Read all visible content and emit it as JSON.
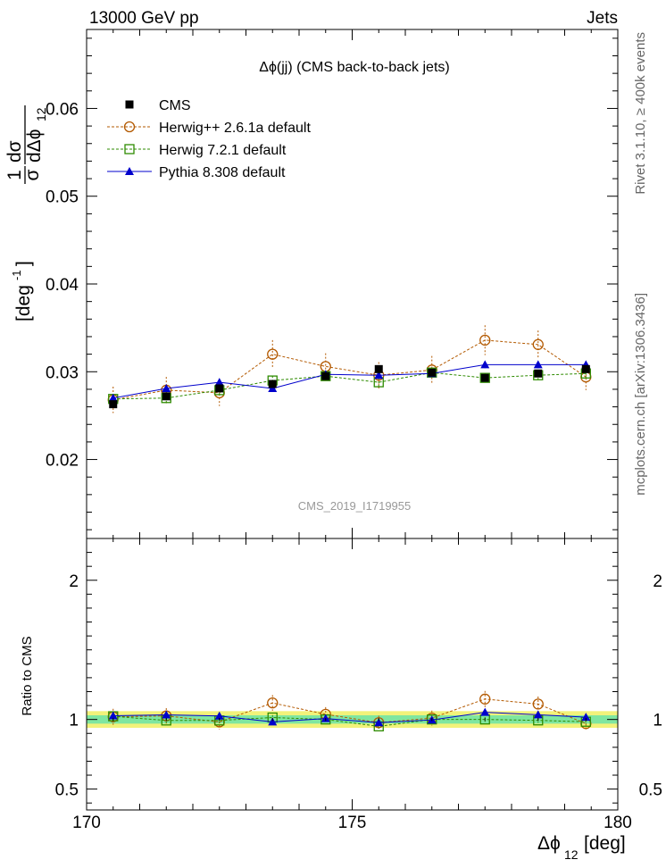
{
  "header": {
    "left": "13000 GeV pp",
    "right": "Jets",
    "side_top": "Rivet 3.1.10, ≥ 400k events",
    "side_bottom": "mcplots.cern.ch [arXiv:1306.3436]"
  },
  "chart_data": {
    "type": "line",
    "title": "Δϕ(jj) (CMS back-to-back jets)",
    "watermark": "CMS_2019_I1719955",
    "xlabel": "Δϕ",
    "xlabel_sub": "12",
    "xlabel_unit": "[deg]",
    "ylabel": "1/σ dσ/dΔϕ₁₂ [deg⁻¹]",
    "ylabel_num": "1",
    "ylabel_den": "σ",
    "ylabel_dsigma": "dσ",
    "ylabel_dphi": "dΔϕ",
    "ylabel_sub": "12",
    "ylabel_unit": "[deg",
    "ylabel_exp": "-1",
    "ylabel_close": "]",
    "ratio_ylabel": "Ratio to CMS",
    "xlim": [
      170,
      180
    ],
    "ylim": [
      0.011,
      0.069
    ],
    "ratio_ylim": [
      0.35,
      2.3
    ],
    "x_ticks": [
      170,
      175,
      180
    ],
    "x_tick_labels": [
      "170",
      "175",
      "180"
    ],
    "y_ticks": [
      0.02,
      0.03,
      0.04,
      0.05,
      0.06
    ],
    "y_tick_labels": [
      "0.02",
      "0.03",
      "0.04",
      "0.05",
      "0.06"
    ],
    "ratio_ticks": [
      0.5,
      1,
      2
    ],
    "ratio_tick_labels": [
      "0.5",
      "1",
      "2"
    ],
    "x": [
      170.5,
      171.5,
      172.5,
      173.5,
      174.5,
      175.5,
      176.5,
      177.5,
      178.5,
      179.4
    ],
    "series": [
      {
        "name": "CMS",
        "style": "data",
        "color": "#000000",
        "values": [
          0.0263,
          0.0272,
          0.0281,
          0.0286,
          0.0295,
          0.0303,
          0.0299,
          0.0293,
          0.0298,
          0.0303
        ],
        "errors": [
          0.0003,
          0.0003,
          0.0003,
          0.0003,
          0.0003,
          0.0003,
          0.0003,
          0.0003,
          0.0003,
          0.0003
        ]
      },
      {
        "name": "Herwig++ 2.6.1a default",
        "style": "circle",
        "color": "#b35900",
        "values": [
          0.0268,
          0.0279,
          0.0276,
          0.032,
          0.0306,
          0.0296,
          0.0302,
          0.0336,
          0.0331,
          0.0294
        ],
        "errors": [
          0.0015,
          0.0015,
          0.0015,
          0.0016,
          0.0015,
          0.0015,
          0.0016,
          0.0017,
          0.0016,
          0.0015
        ]
      },
      {
        "name": "Herwig 7.2.1 default",
        "style": "square",
        "color": "#2e8b00",
        "values": [
          0.0269,
          0.027,
          0.0279,
          0.029,
          0.0295,
          0.0288,
          0.0299,
          0.0293,
          0.0296,
          0.0298
        ],
        "errors": [
          0.0005,
          0.0005,
          0.0005,
          0.0005,
          0.0005,
          0.0005,
          0.0005,
          0.0005,
          0.0005,
          0.0005
        ]
      },
      {
        "name": "Pythia 8.308 default",
        "style": "triangle",
        "color": "#0000cc",
        "values": [
          0.027,
          0.0281,
          0.0288,
          0.0281,
          0.0297,
          0.0296,
          0.0298,
          0.0308,
          0.0308,
          0.0308
        ],
        "errors": [
          0.0004,
          0.0004,
          0.0004,
          0.0004,
          0.0004,
          0.0004,
          0.0004,
          0.0004,
          0.0004,
          0.0004
        ]
      }
    ],
    "ratio_band": {
      "inner": 0.03,
      "outer": 0.06,
      "inner_color": "#7fe6a0",
      "outer_color": "#f2f27a"
    },
    "legend_position": "top-left"
  }
}
